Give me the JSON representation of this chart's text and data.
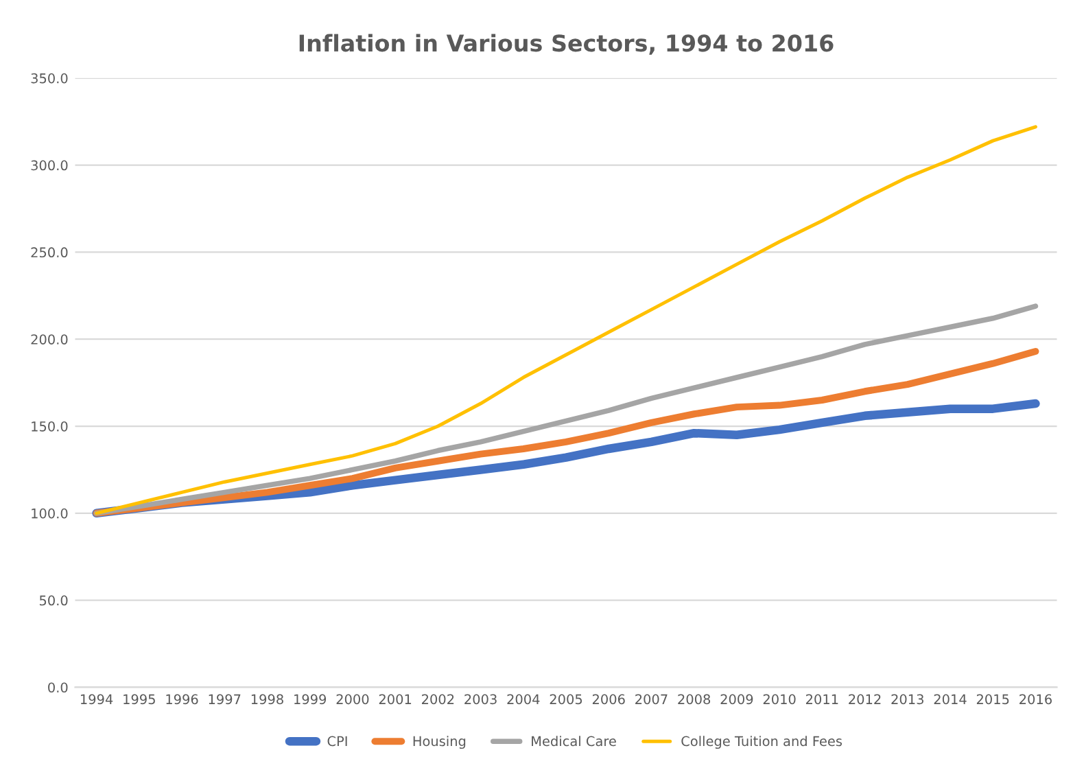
{
  "chart_data": {
    "type": "line",
    "title": "Inflation in Various Sectors, 1994 to 2016",
    "categories": [
      "1994",
      "1995",
      "1996",
      "1997",
      "1998",
      "1999",
      "2000",
      "2001",
      "2002",
      "2003",
      "2004",
      "2005",
      "2006",
      "2007",
      "2008",
      "2009",
      "2010",
      "2011",
      "2012",
      "2013",
      "2014",
      "2015",
      "2016"
    ],
    "series": [
      {
        "name": "CPI",
        "color": "#4472c4",
        "values": [
          100,
          103,
          106,
          108,
          110,
          112,
          116,
          119,
          122,
          125,
          128,
          132,
          137,
          141,
          146,
          145,
          148,
          152,
          156,
          158,
          160,
          160,
          163
        ]
      },
      {
        "name": "Housing",
        "color": "#ed7d31",
        "values": [
          100,
          103,
          106,
          109,
          112,
          116,
          120,
          126,
          130,
          134,
          137,
          141,
          146,
          152,
          157,
          161,
          162,
          165,
          170,
          174,
          180,
          186,
          193
        ]
      },
      {
        "name": "Medical Care",
        "color": "#a5a5a5",
        "values": [
          100,
          104,
          108,
          112,
          116,
          120,
          125,
          130,
          136,
          141,
          147,
          153,
          159,
          166,
          172,
          178,
          184,
          190,
          197,
          202,
          207,
          212,
          219
        ]
      },
      {
        "name": "College Tuition and Fees",
        "color": "#ffc000",
        "values": [
          100,
          106,
          112,
          118,
          123,
          128,
          133,
          140,
          150,
          163,
          178,
          191,
          204,
          217,
          230,
          243,
          256,
          268,
          281,
          293,
          303,
          314,
          322
        ]
      }
    ],
    "ylim": [
      0,
      350
    ],
    "yticks": [
      {
        "value": 0,
        "label": "0.0"
      },
      {
        "value": 50,
        "label": "50.0"
      },
      {
        "value": 100,
        "label": "100.0"
      },
      {
        "value": 150,
        "label": "150.0"
      },
      {
        "value": 200,
        "label": "200.0"
      },
      {
        "value": 250,
        "label": "250.0"
      },
      {
        "value": 300,
        "label": "300.0"
      },
      {
        "value": 350,
        "label": "350.0"
      }
    ],
    "grid": "y",
    "legend": "bottom",
    "line_style": "solid"
  }
}
